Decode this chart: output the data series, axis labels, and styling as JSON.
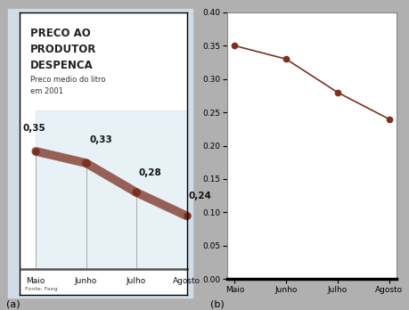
{
  "categories": [
    "Maio",
    "Junho",
    "Julho",
    "Agosto"
  ],
  "values": [
    0.35,
    0.33,
    0.28,
    0.24
  ],
  "value_labels": [
    "0,35",
    "0,33",
    "0,28",
    "0,24"
  ],
  "line_color": "#7B3020",
  "title_line1": "PRECO AO",
  "title_line2": "PRODUTOR",
  "title_line3": "DESPENCA",
  "subtitle_line1": "Preco medio do litro",
  "subtitle_line2": "em 2001",
  "source": "Fonte: Faeg",
  "fig_bg": "#b0b0b0",
  "panel_a_outer_bg": "#d0dde8",
  "panel_a_inner_bg": "#e8eef4",
  "panel_b_bg": "#ffffff",
  "ylim_b": [
    0.0,
    0.4
  ],
  "yticks_b": [
    0.0,
    0.05,
    0.1,
    0.15,
    0.2,
    0.25,
    0.3,
    0.35,
    0.4
  ],
  "label_a": "(a)",
  "label_b": "(b)"
}
